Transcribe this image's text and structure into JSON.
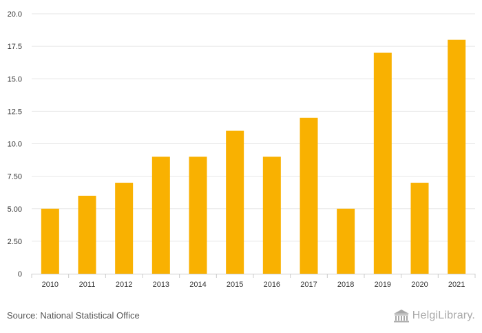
{
  "chart_data": {
    "type": "bar",
    "title": "",
    "xlabel": "",
    "ylabel": "",
    "categories": [
      "2010",
      "2011",
      "2012",
      "2013",
      "2014",
      "2015",
      "2016",
      "2017",
      "2018",
      "2019",
      "2020",
      "2021"
    ],
    "values": [
      5,
      6,
      7,
      9,
      9,
      11,
      9,
      12,
      5,
      17,
      7,
      18
    ],
    "ylim": [
      0,
      20
    ],
    "yticks": [
      "0",
      "2.50",
      "5.00",
      "7.50",
      "10.0",
      "12.5",
      "15.0",
      "17.5",
      "20.0"
    ],
    "ytick_values": [
      0,
      2.5,
      5,
      7.5,
      10,
      12.5,
      15,
      17.5,
      20
    ],
    "grid": true,
    "bar_color": "#f9b101"
  },
  "footer": {
    "source": "Source: National Statistical Office",
    "brand": "HelgiLibrary."
  },
  "colors": {
    "grid": "#e6e6e6",
    "axis": "#cccccc",
    "brand": "#a8a8a8"
  }
}
